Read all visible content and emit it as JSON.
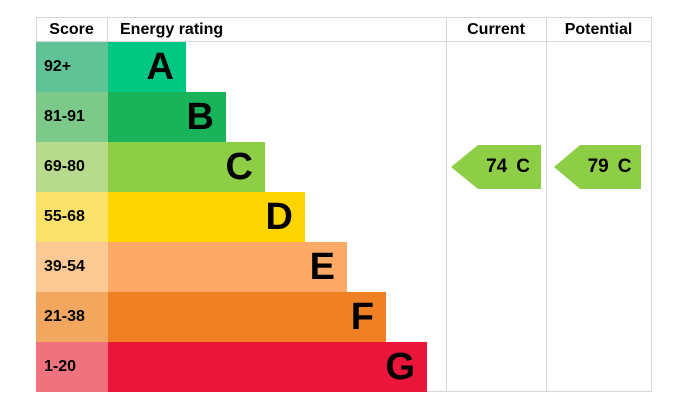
{
  "header": {
    "score": "Score",
    "energy_rating": "Energy rating",
    "current": "Current",
    "potential": "Potential"
  },
  "bands": [
    {
      "score": "92+",
      "letter": "A",
      "color": "#00c781",
      "tint": "#60c397"
    },
    {
      "score": "81-91",
      "letter": "B",
      "color": "#19b459",
      "tint": "#7dc98a"
    },
    {
      "score": "69-80",
      "letter": "C",
      "color": "#8dce46",
      "tint": "#b7da8d"
    },
    {
      "score": "55-68",
      "letter": "D",
      "color": "#ffd500",
      "tint": "#fae16a"
    },
    {
      "score": "39-54",
      "letter": "E",
      "color": "#fcaa65",
      "tint": "#fcc894"
    },
    {
      "score": "21-38",
      "letter": "F",
      "color": "#ef8023",
      "tint": "#f3a65d"
    },
    {
      "score": "1-20",
      "letter": "G",
      "color": "#e9153b",
      "tint": "#f0727f"
    }
  ],
  "current": {
    "value": "74",
    "letter": "C",
    "band_index": 2,
    "color": "#8dce46"
  },
  "potential": {
    "value": "79",
    "letter": "C",
    "band_index": 2,
    "color": "#8dce46"
  },
  "chart_data": {
    "type": "bar",
    "title": "Energy rating",
    "categories": [
      "A",
      "B",
      "C",
      "D",
      "E",
      "F",
      "G"
    ],
    "score_ranges": [
      "92+",
      "81-91",
      "69-80",
      "55-68",
      "39-54",
      "21-38",
      "1-20"
    ],
    "band_colors": [
      "#00c781",
      "#19b459",
      "#8dce46",
      "#ffd500",
      "#fcaa65",
      "#ef8023",
      "#e9153b"
    ],
    "columns": [
      "Score",
      "Energy rating",
      "Current",
      "Potential"
    ],
    "current": {
      "score": 74,
      "rating": "C"
    },
    "potential": {
      "score": 79,
      "rating": "C"
    },
    "legend_position": "none",
    "grid": false
  }
}
